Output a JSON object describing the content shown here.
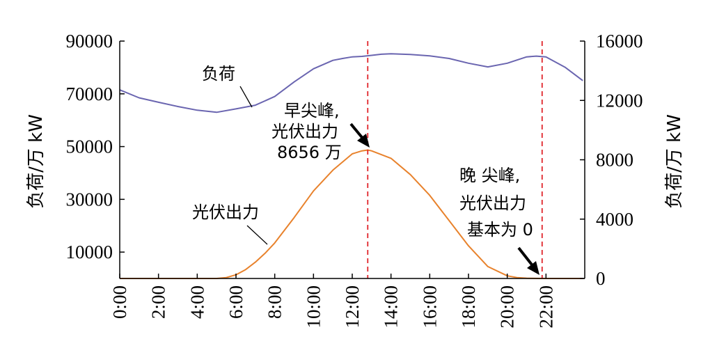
{
  "chart_data": {
    "type": "line",
    "x_tick_labels": [
      "0:00",
      "2:00",
      "4:00",
      "6:00",
      "8:00",
      "10:00",
      "12:00",
      "14:00",
      "16:00",
      "18:00",
      "20:00",
      "22:00"
    ],
    "x_tick_hours": [
      0,
      2,
      4,
      6,
      8,
      10,
      12,
      14,
      16,
      18,
      20,
      22
    ],
    "xlim": [
      0,
      24
    ],
    "y_left": {
      "label": "负荷/万 kW",
      "ylim": [
        0,
        90000
      ],
      "ticks": [
        10000,
        30000,
        50000,
        70000,
        90000
      ]
    },
    "y_right": {
      "label": "负荷/万 kW",
      "ylim": [
        0,
        16000
      ],
      "ticks": [
        0,
        4000,
        8000,
        12000,
        16000
      ]
    },
    "series": [
      {
        "name": "负荷",
        "axis": "left",
        "color": "#6a65b0",
        "x": [
          0,
          1,
          2,
          3,
          4,
          5,
          6,
          7,
          8,
          9,
          10,
          11,
          11.5,
          12,
          12.5,
          13,
          13.5,
          14,
          15,
          16,
          17,
          18,
          19,
          20,
          21,
          21.5,
          22,
          23,
          23.9
        ],
        "y": [
          71500,
          68500,
          66800,
          65200,
          63800,
          63000,
          64300,
          65700,
          69000,
          74500,
          79500,
          82700,
          83400,
          84000,
          84200,
          84600,
          85000,
          85200,
          84900,
          84400,
          83400,
          81600,
          80200,
          81600,
          84000,
          84300,
          84000,
          80000,
          75000
        ]
      },
      {
        "name": "光伏出力",
        "axis": "right",
        "color": "#e8822c",
        "x": [
          0,
          1,
          2,
          3,
          4,
          5,
          5.5,
          6,
          6.5,
          7,
          7.5,
          8,
          9,
          10,
          11,
          12,
          12.5,
          12.8,
          13,
          14,
          15,
          16,
          17,
          18,
          19,
          20,
          20.5,
          21,
          21.5,
          22,
          23,
          23.9
        ],
        "y": [
          0,
          0,
          0,
          0,
          0,
          0,
          60,
          250,
          600,
          1100,
          1700,
          2400,
          4100,
          5900,
          7300,
          8400,
          8600,
          8656,
          8600,
          8100,
          7000,
          5600,
          3900,
          2200,
          800,
          180,
          60,
          20,
          5,
          0,
          0,
          0
        ]
      }
    ],
    "vlines": [
      {
        "x": 12.8,
        "color": "#e0242a",
        "style": "dashed"
      },
      {
        "x": 21.8,
        "color": "#e0242a",
        "style": "dashed"
      }
    ],
    "annotations": {
      "load_label": "负荷",
      "pv_label": "光伏出力",
      "morning_peak": [
        "早尖峰,",
        "光伏出力",
        "8656 万"
      ],
      "evening_peak": [
        "晚  尖峰,",
        "光伏出力",
        "基本为 0"
      ]
    }
  }
}
